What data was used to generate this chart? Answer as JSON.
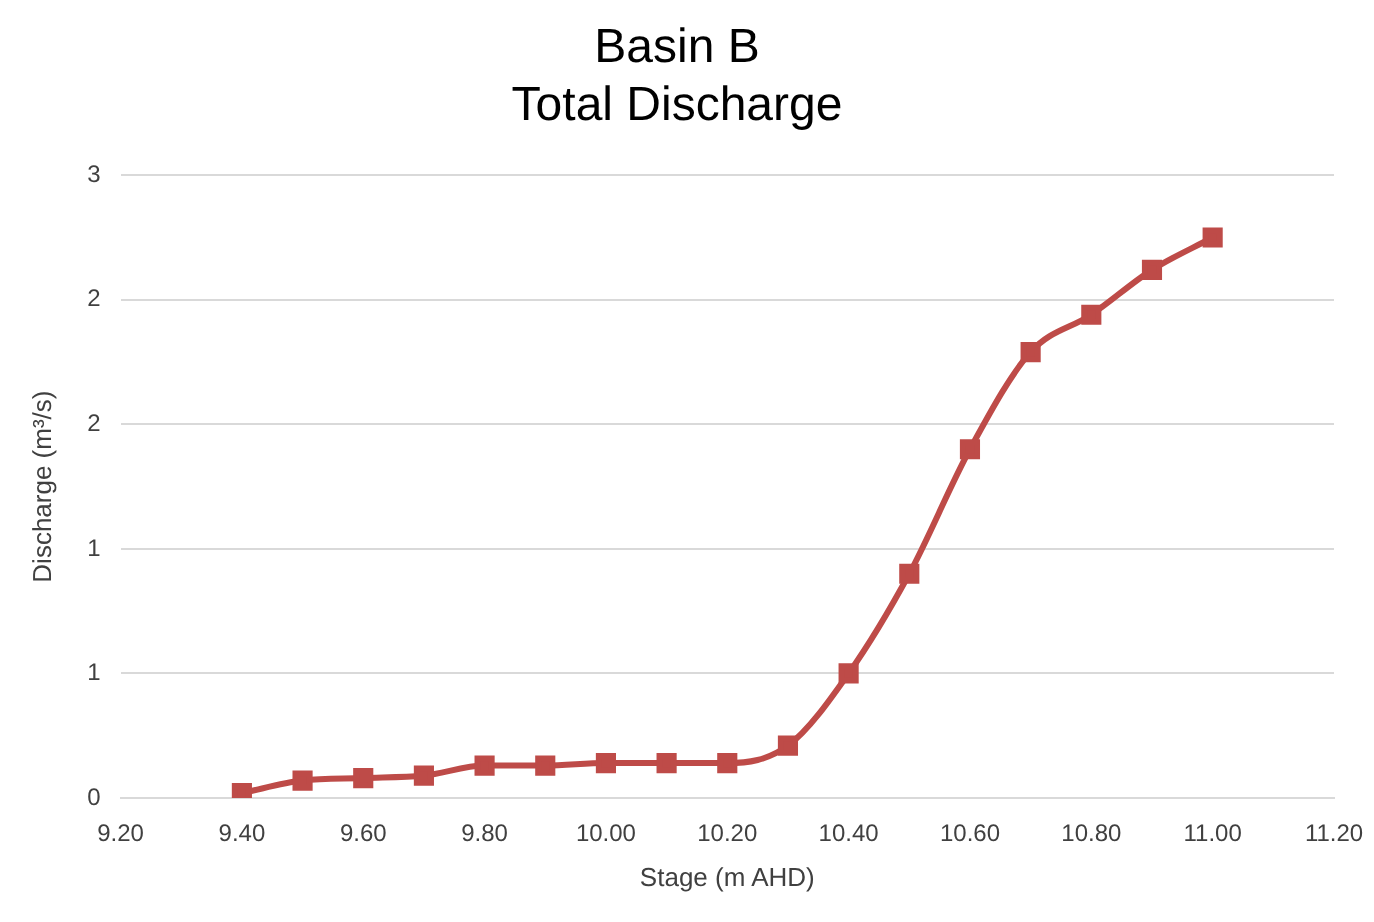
{
  "chart_data": {
    "type": "line",
    "title": "Basin B\nTotal Discharge",
    "xlabel": "Stage (m AHD)",
    "ylabel": "Discharge (m³/s)",
    "x": [
      9.4,
      9.5,
      9.6,
      9.7,
      9.8,
      9.9,
      10.0,
      10.1,
      10.2,
      10.3,
      10.4,
      10.5,
      10.6,
      10.7,
      10.8,
      10.9,
      11.0
    ],
    "series": [
      {
        "color": "#be4b48",
        "values": [
          0.02,
          0.07,
          0.08,
          0.09,
          0.13,
          0.13,
          0.14,
          0.14,
          0.14,
          0.21,
          0.5,
          0.9,
          1.4,
          1.79,
          1.94,
          2.12,
          2.25
        ]
      }
    ],
    "xlim": [
      9.2,
      11.2
    ],
    "xticks": [
      {
        "value": 9.2,
        "label": "9.20"
      },
      {
        "value": 9.4,
        "label": "9.40"
      },
      {
        "value": 9.6,
        "label": "9.60"
      },
      {
        "value": 9.8,
        "label": "9.80"
      },
      {
        "value": 10,
        "label": "10.00"
      },
      {
        "value": 10.2,
        "label": "10.20"
      },
      {
        "value": 10.4,
        "label": "10.40"
      },
      {
        "value": 10.6,
        "label": "10.60"
      },
      {
        "value": 10.8,
        "label": "10.80"
      },
      {
        "value": 11,
        "label": "11.00"
      },
      {
        "value": 11.2,
        "label": "11.20"
      }
    ],
    "ylim": [
      0,
      2.5
    ],
    "yticks": [
      0,
      {
        "value": 0.5,
        "label": "1"
      },
      1,
      {
        "value": 1.5,
        "label": "2"
      },
      2,
      {
        "value": 2.5,
        "label": "3"
      }
    ],
    "grid": "y",
    "legend": false,
    "marker": "square",
    "line_style": "solid"
  }
}
